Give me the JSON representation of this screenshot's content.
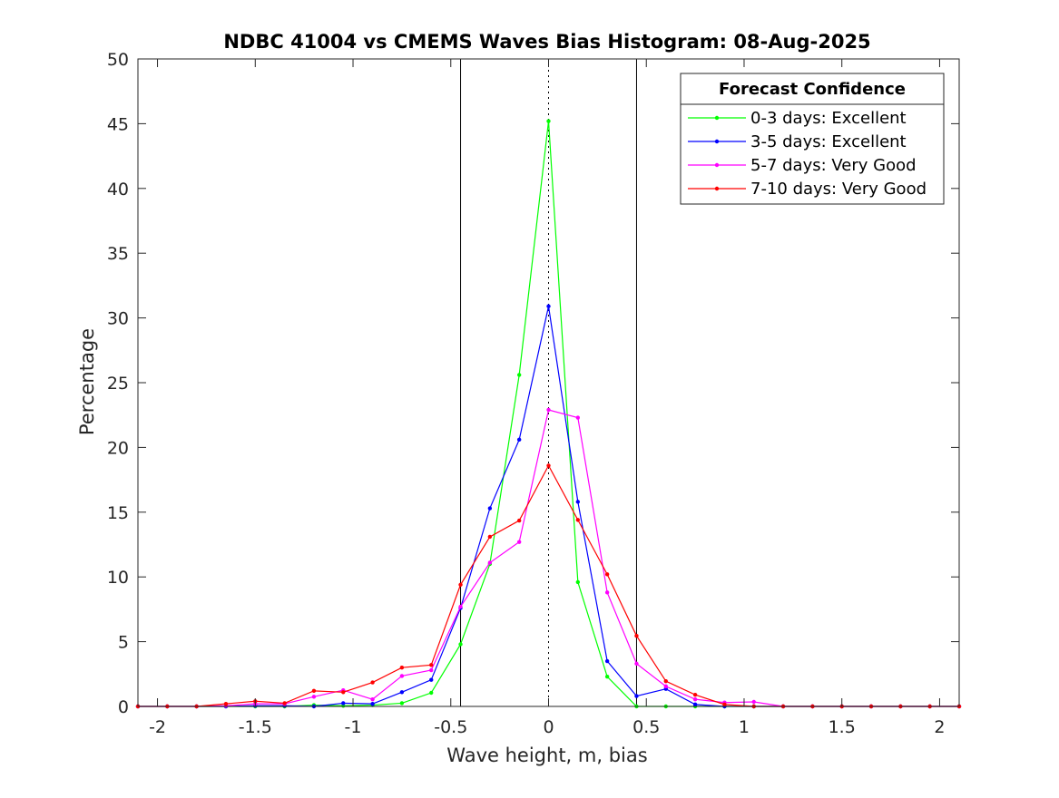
{
  "chart_data": {
    "type": "line",
    "title": "NDBC 41004 vs CMEMS Waves Bias Histogram: 08-Aug-2025",
    "xlabel": "Wave height, m, bias",
    "ylabel": "Percentage",
    "xlim": [
      -2.1,
      2.1
    ],
    "ylim": [
      0,
      50
    ],
    "xticks": [
      -2,
      -1.5,
      -1,
      -0.5,
      0,
      0.5,
      1,
      1.5,
      2
    ],
    "xtick_labels": [
      "-2",
      "-1.5",
      "-1",
      "-0.5",
      "0",
      "0.5",
      "1",
      "1.5",
      "2"
    ],
    "yticks": [
      0,
      5,
      10,
      15,
      20,
      25,
      30,
      35,
      40,
      45,
      50
    ],
    "ytick_labels": [
      "0",
      "5",
      "10",
      "15",
      "20",
      "25",
      "30",
      "35",
      "40",
      "45",
      "50"
    ],
    "grid": false,
    "legend": {
      "title": "Forecast Confidence",
      "location": "top-right"
    },
    "reference_lines": {
      "solid_x": [
        -0.45,
        0.45
      ],
      "dotted_x": [
        0
      ]
    },
    "x": [
      -2.1,
      -1.95,
      -1.8,
      -1.65,
      -1.5,
      -1.35,
      -1.2,
      -1.05,
      -0.9,
      -0.75,
      -0.6,
      -0.45,
      -0.3,
      -0.15,
      0,
      0.15,
      0.3,
      0.45,
      0.6,
      0.75,
      0.9,
      1.05,
      1.2,
      1.35,
      1.5,
      1.65,
      1.8,
      1.95,
      2.1
    ],
    "series": [
      {
        "name": "0-3 days: Excellent",
        "color": "#00ff00",
        "values": [
          0,
          0,
          0,
          0,
          0,
          0,
          0.1,
          0.05,
          0.1,
          0.25,
          1.05,
          4.8,
          11,
          25.6,
          45.2,
          9.6,
          2.3,
          0,
          0,
          0,
          0,
          0,
          0,
          0,
          0,
          0,
          0,
          0,
          0
        ]
      },
      {
        "name": "3-5 days: Excellent",
        "color": "#0000ff",
        "values": [
          0,
          0,
          0,
          0,
          0.05,
          0.05,
          0,
          0.25,
          0.2,
          1.1,
          2.05,
          7.6,
          15.3,
          20.6,
          30.9,
          15.8,
          3.5,
          0.8,
          1.35,
          0.15,
          0,
          0,
          0,
          0,
          0,
          0,
          0,
          0,
          0
        ]
      },
      {
        "name": "5-7 days: Very Good",
        "color": "#ff00ff",
        "values": [
          0,
          0,
          0,
          0.05,
          0.2,
          0.2,
          0.75,
          1.25,
          0.55,
          2.35,
          2.8,
          7.7,
          11.1,
          12.7,
          22.9,
          22.3,
          8.8,
          3.3,
          1.55,
          0.55,
          0.3,
          0.35,
          0,
          0,
          0,
          0,
          0,
          0,
          0
        ]
      },
      {
        "name": "7-10 days: Very Good",
        "color": "#ff0000",
        "values": [
          0,
          0,
          0,
          0.2,
          0.4,
          0.25,
          1.2,
          1.1,
          1.85,
          3.0,
          3.2,
          9.4,
          13.1,
          14.35,
          18.6,
          14.4,
          10.2,
          5.45,
          1.95,
          0.9,
          0.15,
          0,
          0,
          0,
          0,
          0,
          0,
          0,
          0
        ]
      }
    ]
  }
}
